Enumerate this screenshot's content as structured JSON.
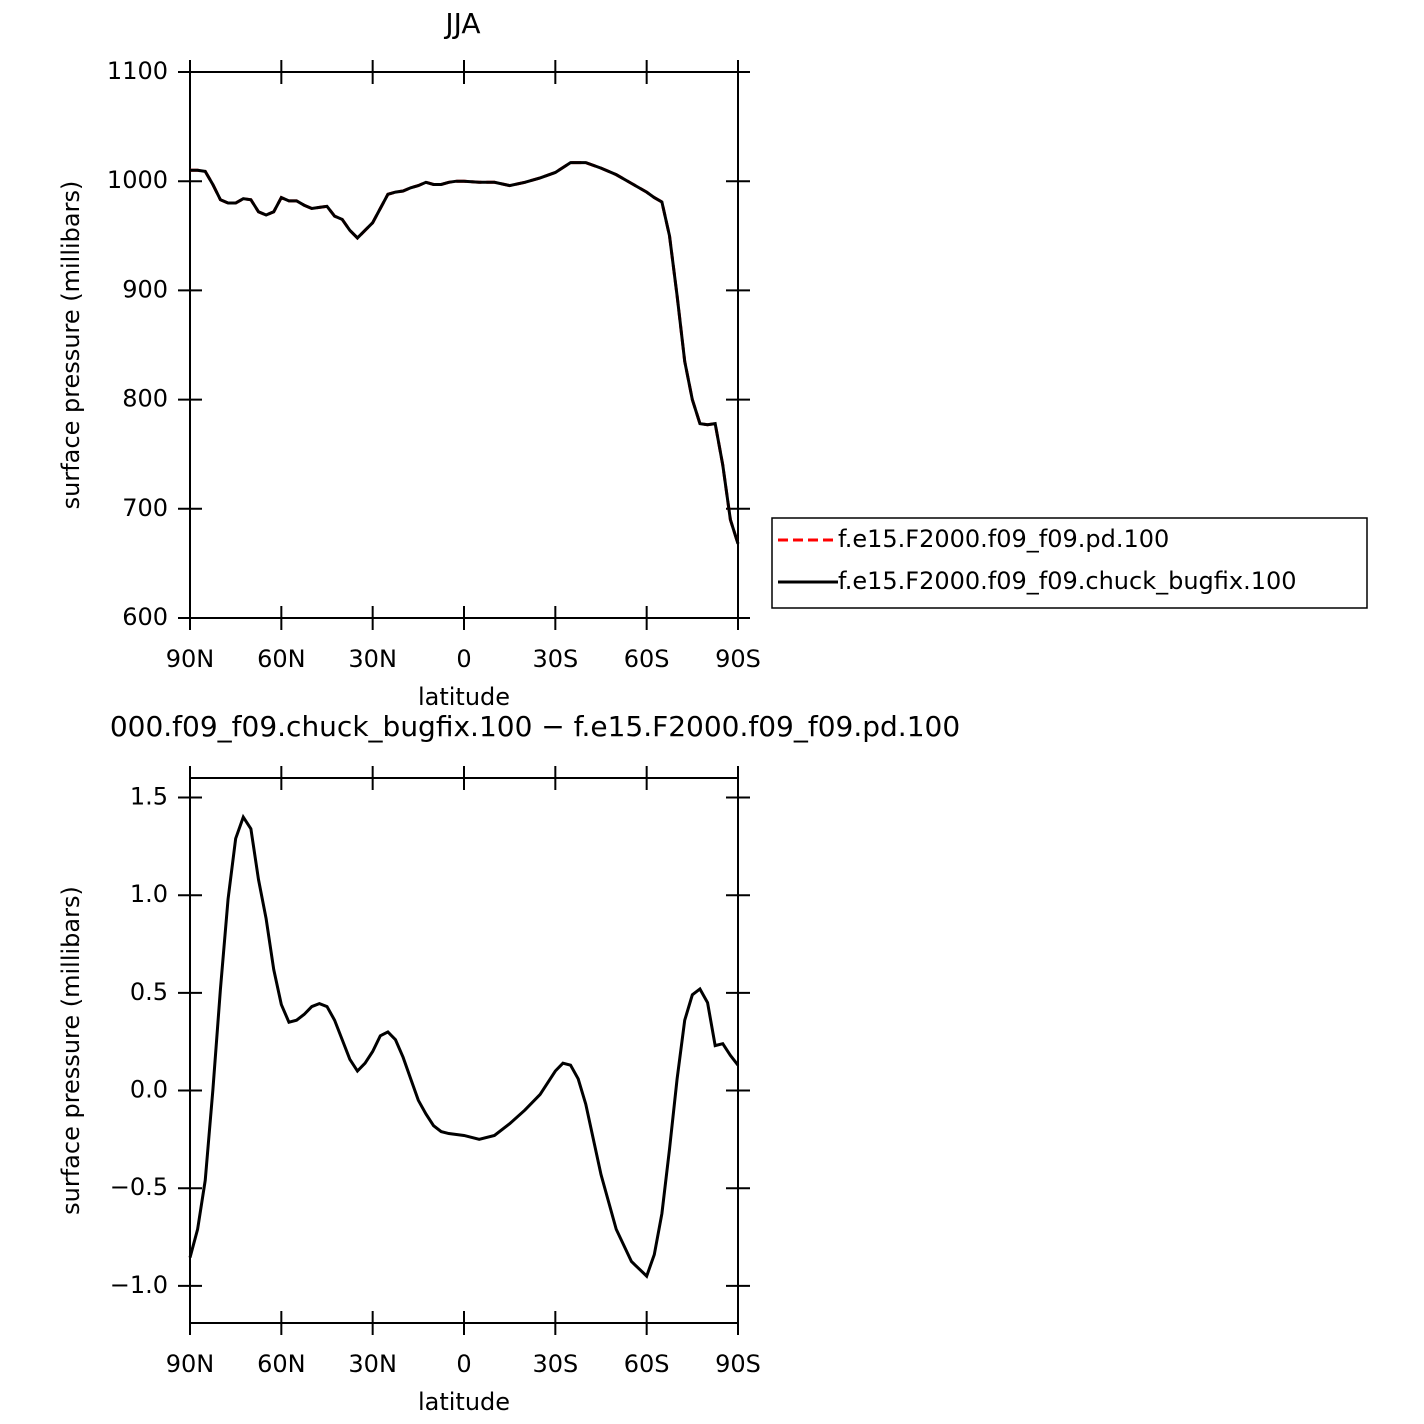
{
  "chart_data": [
    {
      "type": "line",
      "title": "JJA",
      "xlabel": "latitude",
      "ylabel": "surface pressure (millibars)",
      "x": [
        90,
        87.5,
        85,
        82.5,
        80,
        77.5,
        75,
        72.5,
        70,
        67.5,
        65,
        62.5,
        60,
        57.5,
        55,
        52.5,
        50,
        47.5,
        45,
        42.5,
        40,
        37.5,
        35,
        32.5,
        30,
        27.5,
        25,
        22.5,
        20,
        17.5,
        15,
        12.5,
        10,
        7.5,
        5,
        2.5,
        0,
        -5,
        -10,
        -15,
        -20,
        -25,
        -30,
        -35,
        -40,
        -45,
        -50,
        -55,
        -60,
        -62.5,
        -65,
        -67.5,
        -70,
        -72.5,
        -75,
        -77.5,
        -80,
        -82.5,
        -85,
        -87.5,
        -90
      ],
      "series": [
        {
          "name": "f.e15.F2000.f09_f09.pd.100",
          "color": "#ff0000",
          "linestyle": "dashed",
          "values": [
            1010,
            1010,
            1009,
            997,
            983,
            980,
            980,
            984,
            983,
            972,
            969,
            972,
            985,
            982,
            982,
            978,
            975,
            976,
            977,
            968,
            965,
            955,
            948,
            955,
            962,
            975,
            988,
            990,
            991,
            994,
            996,
            999,
            997,
            997,
            999,
            1000,
            1000,
            999,
            999,
            996,
            999,
            1003,
            1008,
            1017,
            1017,
            1012,
            1006,
            998,
            990,
            985,
            981,
            950,
            895,
            835,
            800,
            778,
            777,
            778,
            740,
            690,
            668
          ]
        },
        {
          "name": "f.e15.F2000.f09_f09.chuck_bugfix.100",
          "color": "#000000",
          "linestyle": "solid",
          "values": [
            1010,
            1010,
            1009,
            997,
            983,
            980,
            980,
            984,
            983,
            972,
            969,
            972,
            985,
            982,
            982,
            978,
            975,
            976,
            977,
            968,
            965,
            955,
            948,
            955,
            962,
            975,
            988,
            990,
            991,
            994,
            996,
            999,
            997,
            997,
            999,
            1000,
            1000,
            999,
            999,
            996,
            999,
            1003,
            1008,
            1017,
            1017,
            1012,
            1006,
            998,
            990,
            985,
            981,
            950,
            895,
            835,
            800,
            778,
            777,
            778,
            740,
            690,
            668
          ]
        }
      ],
      "xlim": [
        90,
        -90
      ],
      "ylim": [
        600,
        1100
      ],
      "xticks": [
        {
          "value": 90,
          "label": "90N"
        },
        {
          "value": 60,
          "label": "60N"
        },
        {
          "value": 30,
          "label": "30N"
        },
        0,
        {
          "value": -30,
          "label": "30S"
        },
        {
          "value": -60,
          "label": "60S"
        },
        {
          "value": -90,
          "label": "90S"
        }
      ],
      "yticks": [
        600,
        700,
        800,
        900,
        1000,
        1100
      ],
      "legend": "right"
    },
    {
      "type": "line",
      "title": "000.f09_f09.chuck_bugfix.100 − f.e15.F2000.f09_f09.pd.100",
      "xlabel": "latitude",
      "ylabel": "surface pressure (millibars)",
      "x": [
        90,
        87.5,
        85,
        82.5,
        80,
        77.5,
        75,
        72.5,
        70,
        67.5,
        65,
        62.5,
        60,
        57.5,
        55,
        52.5,
        50,
        47.5,
        45,
        42.5,
        40,
        37.5,
        35,
        32.5,
        30,
        27.5,
        25,
        22.5,
        20,
        17.5,
        15,
        12.5,
        10,
        7.5,
        5,
        2.5,
        0,
        -5,
        -10,
        -15,
        -20,
        -25,
        -30,
        -32.5,
        -35,
        -37.5,
        -40,
        -45,
        -50,
        -55,
        -60,
        -62.5,
        -65,
        -67.5,
        -70,
        -72.5,
        -75,
        -77.5,
        -80,
        -82.5,
        -85,
        -87.5,
        -90
      ],
      "series": [
        {
          "color": "#000000",
          "linestyle": "solid",
          "values": [
            -0.855,
            -0.71,
            -0.46,
            0.0,
            0.52,
            0.98,
            1.29,
            1.4,
            1.34,
            1.08,
            0.88,
            0.62,
            0.44,
            0.35,
            0.36,
            0.39,
            0.43,
            0.445,
            0.43,
            0.36,
            0.26,
            0.16,
            0.1,
            0.14,
            0.2,
            0.28,
            0.3,
            0.26,
            0.17,
            0.06,
            -0.05,
            -0.12,
            -0.18,
            -0.21,
            -0.22,
            -0.225,
            -0.23,
            -0.25,
            -0.23,
            -0.17,
            -0.1,
            -0.02,
            0.1,
            0.14,
            0.13,
            0.06,
            -0.07,
            -0.43,
            -0.71,
            -0.875,
            -0.95,
            -0.84,
            -0.63,
            -0.3,
            0.06,
            0.36,
            0.49,
            0.52,
            0.45,
            0.23,
            0.24,
            0.18,
            0.13
          ]
        }
      ],
      "xlim": [
        90,
        -90
      ],
      "ylim": [
        -1.19,
        1.6
      ],
      "xticks": [
        {
          "value": 90,
          "label": "90N"
        },
        {
          "value": 60,
          "label": "60N"
        },
        {
          "value": 30,
          "label": "30N"
        },
        0,
        {
          "value": -30,
          "label": "30S"
        },
        {
          "value": -60,
          "label": "60S"
        },
        {
          "value": -90,
          "label": "90S"
        }
      ],
      "yticks": [
        {
          "value": -1.0,
          "label": "−1.0"
        },
        {
          "value": -0.5,
          "label": "−0.5"
        },
        {
          "value": 0.0,
          "label": "0.0"
        },
        {
          "value": 0.5,
          "label": "0.5"
        },
        {
          "value": 1.0,
          "label": "1.0"
        },
        {
          "value": 1.5,
          "label": "1.5"
        }
      ]
    }
  ]
}
